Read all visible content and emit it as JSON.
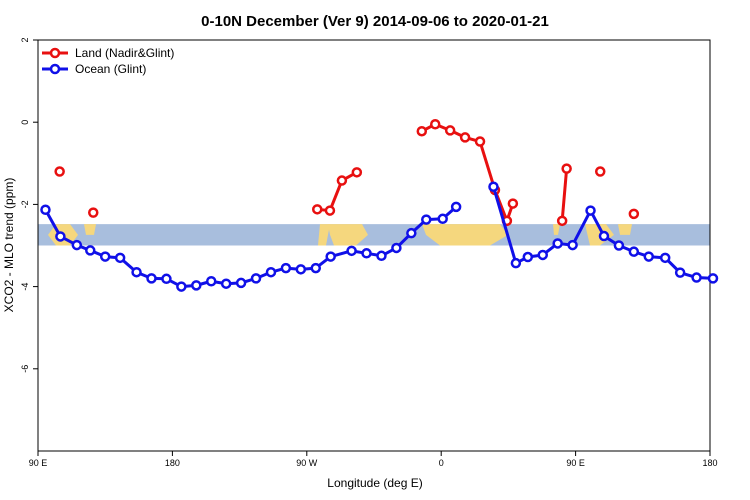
{
  "chart_data": {
    "type": "line",
    "title": "0-10N December (Ver 9)   2014-09-06 to 2020-01-21",
    "xlabel": "Longitude (deg E)",
    "ylabel": "XCO2 - MLO trend (ppm)",
    "xlim": [
      90,
      540
    ],
    "ylim": [
      -8,
      2
    ],
    "x_ticks": [
      {
        "value": 90,
        "label": "90 E"
      },
      {
        "value": 180,
        "label": "180"
      },
      {
        "value": 270,
        "label": "90 W"
      },
      {
        "value": 360,
        "label": "0"
      },
      {
        "value": 450,
        "label": "90 E"
      },
      {
        "value": 540,
        "label": "180"
      }
    ],
    "y_ticks": [
      {
        "value": 2,
        "label": "2"
      },
      {
        "value": 0,
        "label": "0"
      },
      {
        "value": -2,
        "label": "-2"
      },
      {
        "value": -4,
        "label": "-4"
      },
      {
        "value": -6,
        "label": "-6"
      }
    ],
    "band": {
      "y_range": [
        -3.0,
        -2.48
      ],
      "color": "#a8bedd"
    },
    "legend_position": "top-left",
    "series": [
      {
        "name": "Land (Nadir&Glint)",
        "color": "#e81010",
        "segments": [
          [
            [
              104.5,
              -1.2
            ]
          ],
          [
            [
              127,
              -2.2
            ]
          ],
          [
            [
              277,
              -2.12
            ],
            [
              285.5,
              -2.15
            ],
            [
              293.5,
              -1.42
            ],
            [
              303.5,
              -1.22
            ]
          ],
          [
            [
              347,
              -0.22
            ],
            [
              356,
              -0.05
            ],
            [
              366,
              -0.2
            ],
            [
              376,
              -0.37
            ],
            [
              386,
              -0.47
            ],
            [
              396,
              -1.65
            ],
            [
              404,
              -2.4
            ],
            [
              408,
              -1.98
            ]
          ],
          [
            [
              441,
              -2.4
            ],
            [
              444,
              -1.13
            ]
          ],
          [
            [
              466.5,
              -1.2
            ]
          ],
          [
            [
              489,
              -2.23
            ]
          ]
        ]
      },
      {
        "name": "Ocean (Glint)",
        "color": "#1010e8",
        "segments": [
          [
            [
              95,
              -2.13
            ],
            [
              105,
              -2.78
            ],
            [
              116,
              -2.99
            ],
            [
              125,
              -3.12
            ],
            [
              135,
              -3.27
            ],
            [
              145,
              -3.3
            ],
            [
              156,
              -3.65
            ],
            [
              166,
              -3.8
            ],
            [
              176,
              -3.81
            ],
            [
              186,
              -4.0
            ],
            [
              196,
              -3.97
            ],
            [
              206,
              -3.87
            ],
            [
              216,
              -3.93
            ],
            [
              226,
              -3.91
            ],
            [
              236,
              -3.8
            ],
            [
              246,
              -3.65
            ],
            [
              256,
              -3.55
            ],
            [
              266,
              -3.58
            ],
            [
              276,
              -3.55
            ],
            [
              286,
              -3.27
            ],
            [
              300,
              -3.13
            ],
            [
              310,
              -3.19
            ],
            [
              320,
              -3.25
            ],
            [
              330,
              -3.06
            ],
            [
              340,
              -2.7
            ],
            [
              350,
              -2.37
            ],
            [
              361,
              -2.35
            ],
            [
              370,
              -2.06
            ]
          ],
          [
            [
              395,
              -1.57
            ],
            [
              410,
              -3.43
            ],
            [
              418,
              -3.28
            ],
            [
              428,
              -3.23
            ],
            [
              438,
              -2.95
            ],
            [
              448,
              -2.99
            ],
            [
              460,
              -2.15
            ],
            [
              469,
              -2.77
            ],
            [
              479,
              -3.0
            ],
            [
              489,
              -3.15
            ],
            [
              499,
              -3.27
            ],
            [
              510,
              -3.3
            ],
            [
              520,
              -3.66
            ],
            [
              531,
              -3.78
            ],
            [
              542,
              -3.8
            ]
          ]
        ]
      }
    ]
  }
}
